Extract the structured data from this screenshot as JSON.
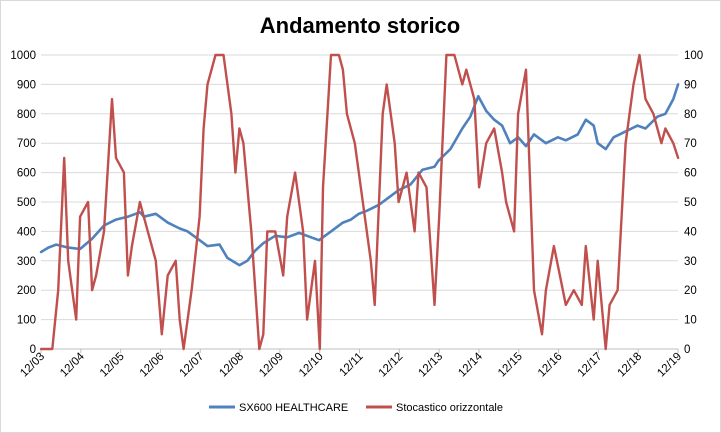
{
  "chart_data": {
    "type": "line",
    "title": "Andamento storico",
    "xlabel": "",
    "ylabel": "",
    "x_ticks": [
      "12/03",
      "12/04",
      "12/05",
      "12/06",
      "12/07",
      "12/08",
      "12/09",
      "12/10",
      "12/11",
      "12/12",
      "12/13",
      "12/14",
      "12/15",
      "12/16",
      "12/17",
      "12/18",
      "12/19"
    ],
    "x_range": [
      2003.917,
      2019.917
    ],
    "y_left": {
      "min": 0,
      "max": 1000,
      "ticks": [
        0,
        100,
        200,
        300,
        400,
        500,
        600,
        700,
        800,
        900,
        1000
      ]
    },
    "y_right": {
      "min": 0,
      "max": 100,
      "ticks": [
        0,
        10,
        20,
        30,
        40,
        50,
        60,
        70,
        80,
        90,
        100
      ]
    },
    "grid": {
      "horizontal": true,
      "vertical": false
    },
    "legend_position": "bottom",
    "series": [
      {
        "name": "SX600 HEALTHCARE",
        "axis": "left",
        "color": "#4F81BD",
        "x": [
          2003.92,
          2004.1,
          2004.3,
          2004.6,
          2004.9,
          2005.2,
          2005.5,
          2005.8,
          2006.1,
          2006.4,
          2006.5,
          2006.8,
          2007.1,
          2007.4,
          2007.6,
          2007.9,
          2008.1,
          2008.4,
          2008.6,
          2008.9,
          2009.1,
          2009.3,
          2009.5,
          2009.8,
          2010.1,
          2010.4,
          2010.7,
          2010.9,
          2011.2,
          2011.5,
          2011.7,
          2011.9,
          2012.1,
          2012.4,
          2012.7,
          2012.9,
          2013.2,
          2013.5,
          2013.8,
          2013.9,
          2014.2,
          2014.5,
          2014.7,
          2014.9,
          2015.1,
          2015.3,
          2015.5,
          2015.7,
          2015.9,
          2016.1,
          2016.3,
          2016.6,
          2016.9,
          2017.1,
          2017.4,
          2017.6,
          2017.8,
          2017.9,
          2018.1,
          2018.3,
          2018.6,
          2018.9,
          2019.1,
          2019.4,
          2019.6,
          2019.8,
          2019.92
        ],
        "y": [
          330,
          345,
          355,
          345,
          340,
          375,
          420,
          440,
          450,
          465,
          450,
          460,
          430,
          410,
          400,
          370,
          350,
          355,
          310,
          285,
          300,
          335,
          360,
          385,
          380,
          395,
          380,
          370,
          400,
          430,
          440,
          460,
          470,
          490,
          520,
          540,
          560,
          610,
          620,
          640,
          680,
          750,
          790,
          860,
          810,
          780,
          760,
          700,
          720,
          690,
          730,
          700,
          720,
          710,
          730,
          780,
          760,
          700,
          680,
          720,
          740,
          760,
          750,
          790,
          800,
          850,
          900
        ]
      },
      {
        "name": "Stocastico orizzontale",
        "axis": "right",
        "color": "#C0504D",
        "x": [
          2003.92,
          2004.2,
          2004.35,
          2004.5,
          2004.6,
          2004.8,
          2004.9,
          2005.1,
          2005.2,
          2005.3,
          2005.5,
          2005.7,
          2005.8,
          2006.0,
          2006.1,
          2006.2,
          2006.4,
          2006.5,
          2006.6,
          2006.8,
          2006.95,
          2007.1,
          2007.3,
          2007.4,
          2007.5,
          2007.7,
          2007.9,
          2008.0,
          2008.1,
          2008.3,
          2008.5,
          2008.7,
          2008.8,
          2008.9,
          2009.0,
          2009.2,
          2009.4,
          2009.5,
          2009.6,
          2009.8,
          2010.0,
          2010.1,
          2010.3,
          2010.5,
          2010.6,
          2010.8,
          2010.92,
          2011.0,
          2011.2,
          2011.4,
          2011.5,
          2011.6,
          2011.8,
          2011.9,
          2012.0,
          2012.2,
          2012.3,
          2012.5,
          2012.6,
          2012.8,
          2012.9,
          2013.1,
          2013.3,
          2013.4,
          2013.6,
          2013.8,
          2013.92,
          2014.1,
          2014.3,
          2014.5,
          2014.6,
          2014.8,
          2014.92,
          2015.1,
          2015.3,
          2015.5,
          2015.6,
          2015.8,
          2015.9,
          2016.1,
          2016.3,
          2016.5,
          2016.6,
          2016.8,
          2016.95,
          2017.1,
          2017.3,
          2017.5,
          2017.6,
          2017.8,
          2017.9,
          2018.1,
          2018.2,
          2018.4,
          2018.6,
          2018.8,
          2018.95,
          2019.1,
          2019.3,
          2019.5,
          2019.6,
          2019.8,
          2019.92
        ],
        "y": [
          0,
          0,
          20,
          65,
          30,
          10,
          45,
          50,
          20,
          25,
          40,
          85,
          65,
          60,
          25,
          35,
          50,
          45,
          40,
          30,
          5,
          25,
          30,
          10,
          0,
          20,
          45,
          75,
          90,
          100,
          100,
          80,
          60,
          75,
          70,
          40,
          0,
          5,
          40,
          40,
          25,
          45,
          60,
          40,
          10,
          30,
          0,
          55,
          100,
          100,
          95,
          80,
          70,
          60,
          50,
          30,
          15,
          80,
          90,
          70,
          50,
          60,
          40,
          60,
          55,
          15,
          45,
          100,
          100,
          90,
          95,
          85,
          55,
          70,
          75,
          60,
          50,
          40,
          80,
          95,
          20,
          5,
          20,
          35,
          25,
          15,
          20,
          15,
          35,
          10,
          30,
          0,
          15,
          20,
          70,
          90,
          100,
          85,
          80,
          70,
          75,
          70,
          65
        ]
      }
    ]
  }
}
